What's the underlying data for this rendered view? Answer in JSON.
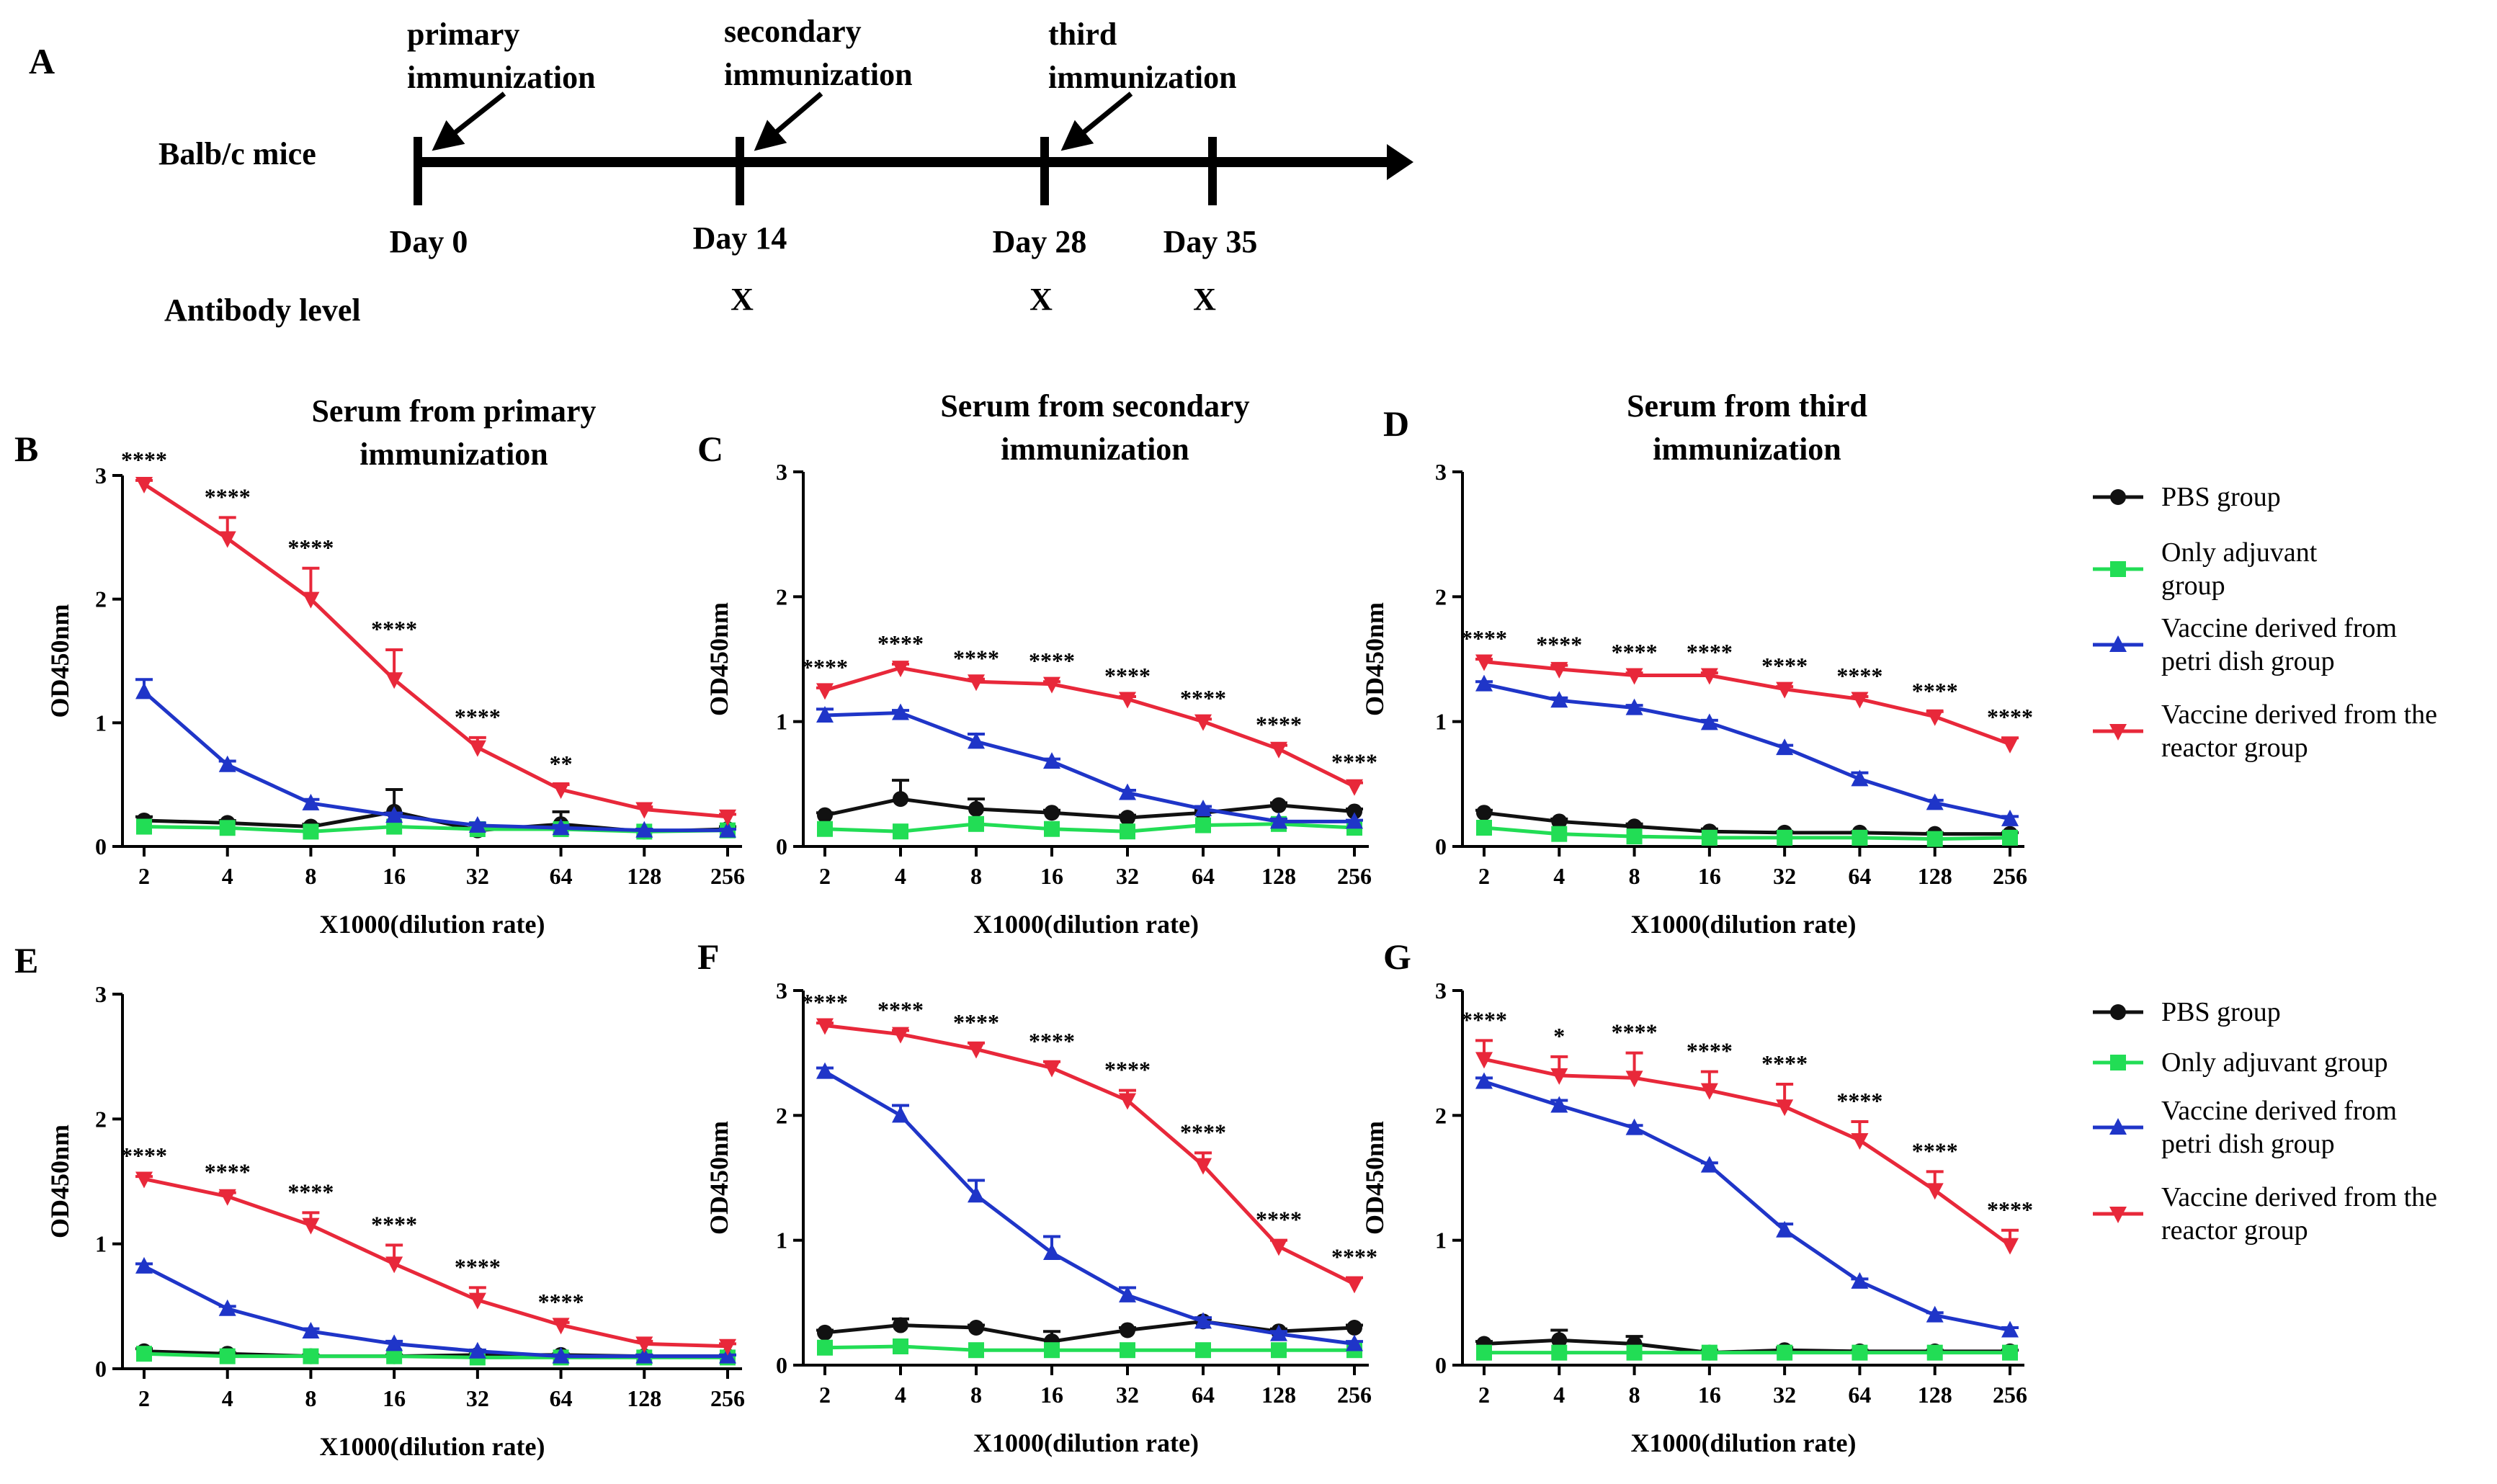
{
  "figure": {
    "panel_a": {
      "letter": "A",
      "subject": "Balb/c mice",
      "antibody_label": "Antibody level",
      "mark": "X",
      "days": [
        "Day 0",
        "Day 14",
        "Day 28",
        "Day 35"
      ],
      "immunizations": [
        {
          "line1": "primary",
          "line2": "immunization"
        },
        {
          "line1": "secondary",
          "line2": "immunization"
        },
        {
          "line1": "third",
          "line2": "immunization"
        }
      ]
    },
    "legend_top": [
      "PBS group",
      "Only adjuvant group",
      "Vaccine derived from petri dish group",
      "Vaccine derived from the reactor group"
    ],
    "legend_top_lines": [
      [
        "PBS group"
      ],
      [
        "Only adjuvant",
        "group"
      ],
      [
        "Vaccine derived from",
        "petri dish group"
      ],
      [
        "Vaccine derived from the",
        "reactor group"
      ]
    ],
    "legend_bottom_lines": [
      [
        "PBS group"
      ],
      [
        "Only adjuvant group"
      ],
      [
        "Vaccine derived from",
        "petri dish group"
      ],
      [
        "Vaccine derived from the",
        "reactor group"
      ]
    ],
    "colors": {
      "pbs": "#111111",
      "adjuvant": "#22dd55",
      "petri": "#1f35c8",
      "reactor": "#e8283a"
    }
  },
  "chart_data": [
    {
      "panel": "B",
      "type": "line",
      "title_lines": [
        "Serum from primary",
        "immunization"
      ],
      "xlabel": "X1000(dilution rate)",
      "ylabel": "OD450nm",
      "categories": [
        "2",
        "4",
        "8",
        "16",
        "32",
        "64",
        "128",
        "256"
      ],
      "ylim": [
        0,
        3
      ],
      "yticks": [
        "0",
        "1",
        "2",
        "3"
      ],
      "series": [
        {
          "name": "PBS group",
          "values": [
            0.21,
            0.19,
            0.16,
            0.28,
            0.13,
            0.18,
            0.12,
            0.14
          ],
          "err": [
            0.03,
            0.02,
            0.02,
            0.18,
            0.02,
            0.1,
            0.02,
            0.02
          ]
        },
        {
          "name": "Only adjuvant group",
          "values": [
            0.16,
            0.15,
            0.12,
            0.16,
            0.14,
            0.14,
            0.12,
            0.13
          ],
          "err": [
            0,
            0,
            0,
            0,
            0,
            0,
            0,
            0
          ]
        },
        {
          "name": "Vaccine derived from petri dish group",
          "values": [
            1.25,
            0.66,
            0.35,
            0.25,
            0.17,
            0.15,
            0.13,
            0.13
          ],
          "err": [
            0.1,
            0.03,
            0.03,
            0.02,
            0.02,
            0.02,
            0.01,
            0.01
          ]
        },
        {
          "name": "Vaccine derived from the reactor group",
          "values": [
            2.93,
            2.49,
            2.0,
            1.35,
            0.8,
            0.46,
            0.3,
            0.24
          ],
          "err": [
            0.03,
            0.17,
            0.25,
            0.24,
            0.08,
            0.04,
            0.02,
            0.02
          ]
        }
      ],
      "significance": [
        "****",
        "****",
        "****",
        "****",
        "****",
        "**",
        "",
        ""
      ]
    },
    {
      "panel": "C",
      "type": "line",
      "title_lines": [
        "Serum from secondary",
        "immunization"
      ],
      "xlabel": "X1000(dilution rate)",
      "ylabel": "OD450nm",
      "categories": [
        "2",
        "4",
        "8",
        "16",
        "32",
        "64",
        "128",
        "256"
      ],
      "ylim": [
        0,
        3
      ],
      "yticks": [
        "0",
        "1",
        "2",
        "3"
      ],
      "series": [
        {
          "name": "PBS group",
          "values": [
            0.25,
            0.38,
            0.3,
            0.27,
            0.23,
            0.27,
            0.33,
            0.28
          ],
          "err": [
            0.02,
            0.15,
            0.08,
            0.02,
            0.02,
            0.02,
            0.02,
            0.02
          ]
        },
        {
          "name": "Only adjuvant group",
          "values": [
            0.14,
            0.12,
            0.18,
            0.14,
            0.12,
            0.17,
            0.18,
            0.15
          ],
          "err": [
            0,
            0,
            0,
            0,
            0,
            0,
            0,
            0
          ]
        },
        {
          "name": "Vaccine derived from petri dish group",
          "values": [
            1.05,
            1.07,
            0.84,
            0.68,
            0.43,
            0.3,
            0.2,
            0.2
          ],
          "err": [
            0.05,
            0.02,
            0.06,
            0.02,
            0.02,
            0.02,
            0.02,
            0.01
          ]
        },
        {
          "name": "Vaccine derived from the reactor group",
          "values": [
            1.25,
            1.43,
            1.32,
            1.3,
            1.18,
            1.0,
            0.78,
            0.48
          ],
          "err": [
            0.02,
            0.03,
            0.02,
            0.02,
            0.02,
            0.02,
            0.03,
            0.03
          ]
        }
      ],
      "significance": [
        "****",
        "****",
        "****",
        "****",
        "****",
        "****",
        "****",
        "****"
      ]
    },
    {
      "panel": "D",
      "type": "line",
      "title_lines": [
        "Serum from third",
        "immunization"
      ],
      "xlabel": "X1000(dilution rate)",
      "ylabel": "OD450nm",
      "categories": [
        "2",
        "4",
        "8",
        "16",
        "32",
        "64",
        "128",
        "256"
      ],
      "ylim": [
        0,
        3
      ],
      "yticks": [
        "0",
        "1",
        "2",
        "3"
      ],
      "series": [
        {
          "name": "PBS group",
          "values": [
            0.27,
            0.2,
            0.16,
            0.12,
            0.11,
            0.11,
            0.1,
            0.1
          ],
          "err": [
            0.02,
            0.02,
            0.02,
            0.02,
            0.01,
            0.01,
            0.01,
            0.01
          ]
        },
        {
          "name": "Only adjuvant group",
          "values": [
            0.15,
            0.1,
            0.08,
            0.07,
            0.07,
            0.07,
            0.06,
            0.07
          ],
          "err": [
            0,
            0,
            0,
            0,
            0,
            0,
            0,
            0
          ]
        },
        {
          "name": "Vaccine derived from petri dish group",
          "values": [
            1.3,
            1.17,
            1.11,
            0.99,
            0.79,
            0.54,
            0.35,
            0.22
          ],
          "err": [
            0.02,
            0.02,
            0.02,
            0.02,
            0.02,
            0.05,
            0.02,
            0.02
          ]
        },
        {
          "name": "Vaccine derived from the reactor group",
          "values": [
            1.48,
            1.42,
            1.37,
            1.37,
            1.26,
            1.18,
            1.04,
            0.82
          ],
          "err": [
            0.02,
            0.03,
            0.02,
            0.02,
            0.02,
            0.02,
            0.04,
            0.05
          ]
        }
      ],
      "significance": [
        "****",
        "****",
        "****",
        "****",
        "****",
        "****",
        "****",
        "****"
      ]
    },
    {
      "panel": "E",
      "type": "line",
      "title_lines": [],
      "xlabel": "X1000(dilution rate)",
      "ylabel": "OD450nm",
      "categories": [
        "2",
        "4",
        "8",
        "16",
        "32",
        "64",
        "128",
        "256"
      ],
      "ylim": [
        0,
        3
      ],
      "yticks": [
        "0",
        "1",
        "2",
        "3"
      ],
      "series": [
        {
          "name": "PBS group",
          "values": [
            0.14,
            0.12,
            0.1,
            0.1,
            0.11,
            0.11,
            0.1,
            0.1
          ],
          "err": [
            0.02,
            0.01,
            0.01,
            0.01,
            0.01,
            0.01,
            0.01,
            0.01
          ]
        },
        {
          "name": "Only adjuvant group",
          "values": [
            0.12,
            0.1,
            0.1,
            0.1,
            0.09,
            0.09,
            0.09,
            0.09
          ],
          "err": [
            0,
            0,
            0,
            0,
            0,
            0,
            0,
            0
          ]
        },
        {
          "name": "Vaccine derived from petri dish group",
          "values": [
            0.82,
            0.48,
            0.3,
            0.2,
            0.14,
            0.1,
            0.1,
            0.1
          ],
          "err": [
            0.02,
            0.02,
            0.02,
            0.02,
            0.01,
            0.01,
            0.01,
            0.01
          ]
        },
        {
          "name": "Vaccine derived from the reactor group",
          "values": [
            1.52,
            1.38,
            1.15,
            0.84,
            0.55,
            0.35,
            0.2,
            0.18
          ],
          "err": [
            0.02,
            0.03,
            0.1,
            0.15,
            0.1,
            0.02,
            0.02,
            0.02
          ]
        }
      ],
      "significance": [
        "****",
        "****",
        "****",
        "****",
        "****",
        "****",
        "",
        ""
      ]
    },
    {
      "panel": "F",
      "type": "line",
      "title_lines": [],
      "xlabel": "X1000(dilution rate)",
      "ylabel": "OD450nm",
      "categories": [
        "2",
        "4",
        "8",
        "16",
        "32",
        "64",
        "128",
        "256"
      ],
      "ylim": [
        0,
        3
      ],
      "yticks": [
        "0",
        "1",
        "2",
        "3"
      ],
      "series": [
        {
          "name": "PBS group",
          "values": [
            0.26,
            0.32,
            0.3,
            0.19,
            0.28,
            0.35,
            0.27,
            0.3
          ],
          "err": [
            0.02,
            0.05,
            0.02,
            0.08,
            0.02,
            0.02,
            0.02,
            0.02
          ]
        },
        {
          "name": "Only adjuvant group",
          "values": [
            0.14,
            0.15,
            0.12,
            0.12,
            0.12,
            0.12,
            0.12,
            0.12
          ],
          "err": [
            0,
            0,
            0,
            0,
            0,
            0,
            0,
            0
          ]
        },
        {
          "name": "Vaccine derived from petri dish group",
          "values": [
            2.35,
            2.0,
            1.36,
            0.9,
            0.56,
            0.35,
            0.25,
            0.17
          ],
          "err": [
            0.03,
            0.08,
            0.12,
            0.13,
            0.06,
            0.03,
            0.02,
            0.02
          ]
        },
        {
          "name": "Vaccine derived from the reactor group",
          "values": [
            2.72,
            2.65,
            2.53,
            2.38,
            2.12,
            1.6,
            0.95,
            0.65
          ],
          "err": [
            0.02,
            0.03,
            0.05,
            0.05,
            0.08,
            0.1,
            0.05,
            0.05
          ]
        }
      ],
      "significance": [
        "****",
        "****",
        "****",
        "****",
        "****",
        "****",
        "****",
        "****"
      ]
    },
    {
      "panel": "G",
      "type": "line",
      "title_lines": [],
      "xlabel": "X1000(dilution rate)",
      "ylabel": "OD450nm",
      "categories": [
        "2",
        "4",
        "8",
        "16",
        "32",
        "64",
        "128",
        "256"
      ],
      "ylim": [
        0,
        3
      ],
      "yticks": [
        "0",
        "1",
        "2",
        "3"
      ],
      "series": [
        {
          "name": "PBS group",
          "values": [
            0.17,
            0.2,
            0.17,
            0.1,
            0.12,
            0.11,
            0.11,
            0.11
          ],
          "err": [
            0.02,
            0.08,
            0.06,
            0.02,
            0.02,
            0.01,
            0.01,
            0.01
          ]
        },
        {
          "name": "Only adjuvant group",
          "values": [
            0.1,
            0.1,
            0.1,
            0.1,
            0.1,
            0.1,
            0.1,
            0.1
          ],
          "err": [
            0,
            0,
            0,
            0,
            0,
            0,
            0,
            0
          ]
        },
        {
          "name": "Vaccine derived from petri dish group",
          "values": [
            2.27,
            2.08,
            1.9,
            1.6,
            1.08,
            0.67,
            0.4,
            0.28
          ],
          "err": [
            0.03,
            0.04,
            0.02,
            0.02,
            0.05,
            0.02,
            0.02,
            0.02
          ]
        },
        {
          "name": "Vaccine derived from the reactor group",
          "values": [
            2.45,
            2.32,
            2.3,
            2.2,
            2.07,
            1.8,
            1.4,
            0.96
          ],
          "err": [
            0.15,
            0.15,
            0.2,
            0.15,
            0.18,
            0.15,
            0.15,
            0.12
          ]
        }
      ],
      "significance": [
        "****",
        "*",
        "****",
        "****",
        "****",
        "****",
        "****",
        "****"
      ]
    }
  ]
}
